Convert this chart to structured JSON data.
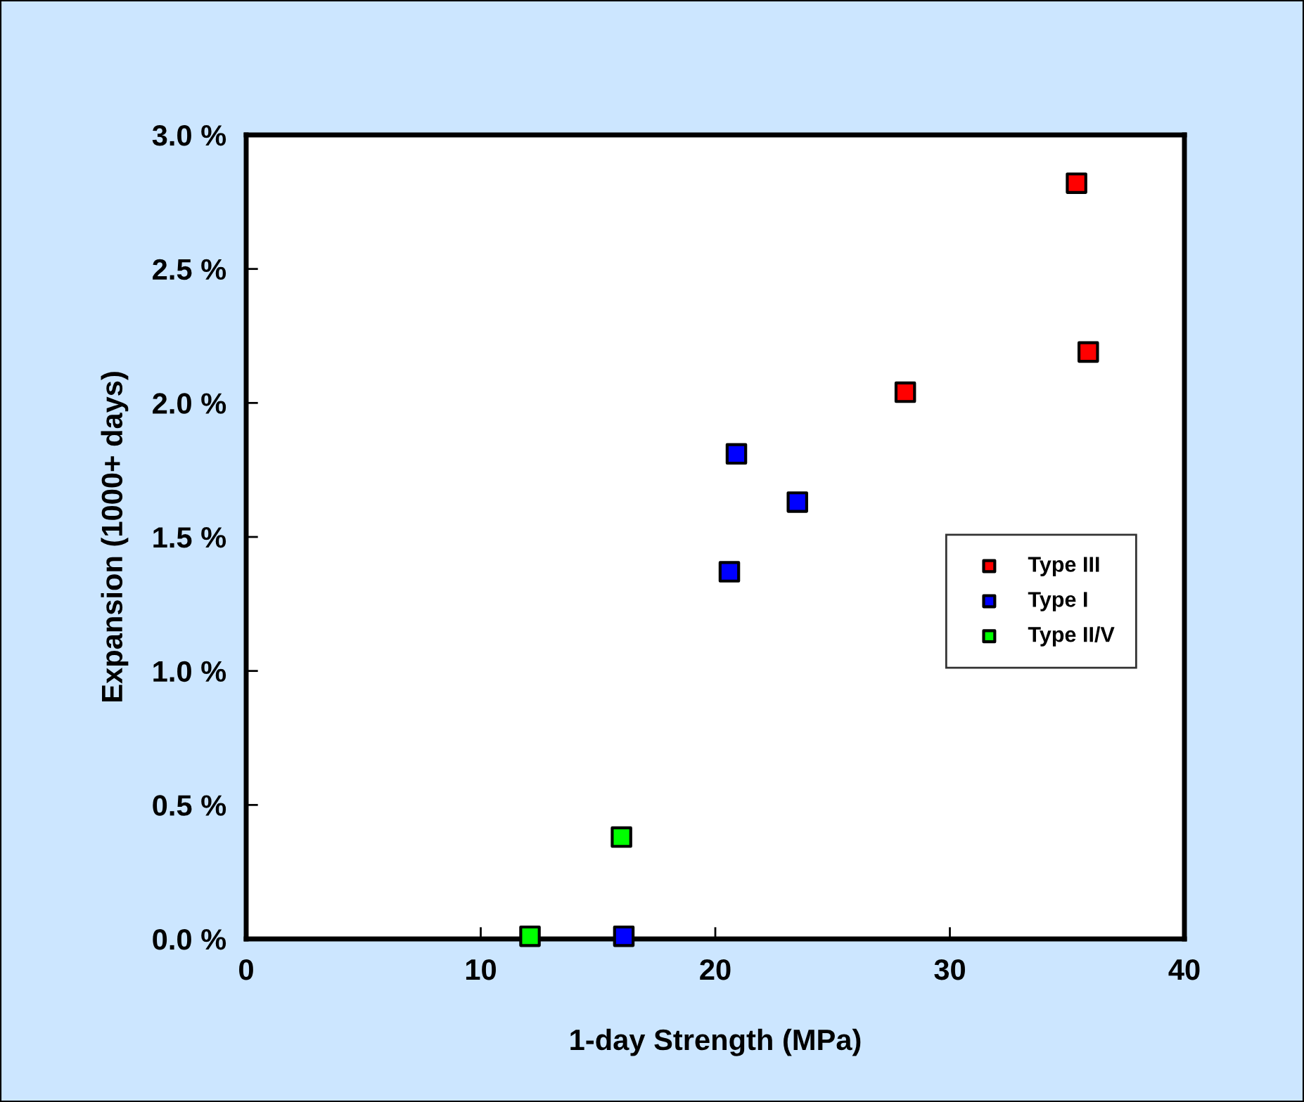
{
  "chart_data": {
    "type": "scatter",
    "xlabel": "1-day Strength (MPa)",
    "ylabel": "Expansion (1000+ days)",
    "xlim": [
      0,
      40
    ],
    "xticks": [
      0,
      10,
      20,
      30,
      40
    ],
    "ylim": [
      0,
      3.0
    ],
    "yticks": [
      {
        "value": 0,
        "label": "0.0 %"
      },
      {
        "value": 0.5,
        "label": "0.5 %"
      },
      {
        "value": 1.0,
        "label": "1.0 %"
      },
      {
        "value": 1.5,
        "label": "1.5 %"
      },
      {
        "value": 2.0,
        "label": "2.0 %"
      },
      {
        "value": 2.5,
        "label": "2.5 %"
      },
      {
        "value": 3.0,
        "label": "3.0 %"
      }
    ],
    "marker": "square",
    "legend": "right",
    "grid": false,
    "series": [
      {
        "name": "Type III",
        "color": "#ff0000",
        "x": [
          35.4,
          35.9,
          28.1
        ],
        "values": [
          2.82,
          2.19,
          2.04
        ]
      },
      {
        "name": "Type I",
        "color": "#0000ff",
        "x": [
          20.9,
          23.5,
          20.6,
          16.1
        ],
        "values": [
          1.81,
          1.63,
          1.37,
          0.01
        ]
      },
      {
        "name": "Type II/V",
        "color": "#00ff00",
        "x": [
          16.0,
          12.1
        ],
        "values": [
          0.38,
          0.01
        ]
      }
    ]
  }
}
